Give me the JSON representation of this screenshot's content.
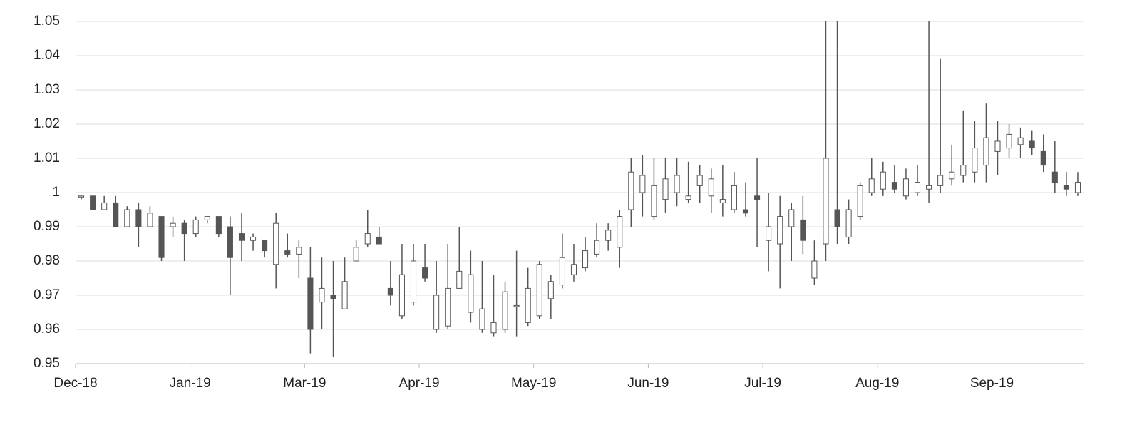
{
  "chart_data": {
    "type": "candlestick",
    "categories": [
      "Dec-18",
      null,
      null,
      null,
      null,
      null,
      null,
      null,
      null,
      null,
      "Jan-19",
      null,
      null,
      null,
      null,
      null,
      null,
      null,
      null,
      null,
      "Mar-19",
      null,
      null,
      null,
      null,
      null,
      null,
      null,
      null,
      null,
      "Apr-19",
      null,
      null,
      null,
      null,
      null,
      null,
      null,
      null,
      null,
      "May-19",
      null,
      null,
      null,
      null,
      null,
      null,
      null,
      null,
      null,
      "Jun-19",
      null,
      null,
      null,
      null,
      null,
      null,
      null,
      null,
      null,
      "Jul-19",
      null,
      null,
      null,
      null,
      null,
      null,
      null,
      null,
      null,
      "Aug-19",
      null,
      null,
      null,
      null,
      null,
      null,
      null,
      null,
      null,
      "Sep-19",
      null,
      null,
      null,
      null,
      null,
      null,
      null
    ],
    "open": [
      0.999,
      0.999,
      0.995,
      0.997,
      0.99,
      0.995,
      0.99,
      0.993,
      0.99,
      0.991,
      0.988,
      0.992,
      0.993,
      0.99,
      0.988,
      0.986,
      0.986,
      0.979,
      0.983,
      0.982,
      0.975,
      0.968,
      0.97,
      0.966,
      0.98,
      0.985,
      0.987,
      0.972,
      0.964,
      0.968,
      0.978,
      0.96,
      0.961,
      0.972,
      0.965,
      0.96,
      0.959,
      0.96,
      0.967,
      0.962,
      0.964,
      0.969,
      0.973,
      0.976,
      0.978,
      0.982,
      0.986,
      0.984,
      0.995,
      1.0,
      0.993,
      0.998,
      1.0,
      0.998,
      1.002,
      0.999,
      0.997,
      0.995,
      0.995,
      0.999,
      0.986,
      0.985,
      0.99,
      0.992,
      0.975,
      0.985,
      0.995,
      0.987,
      0.993,
      1.0,
      1.001,
      1.003,
      0.999,
      1.0,
      1.001,
      1.002,
      1.004,
      1.005,
      1.006,
      1.008,
      1.012,
      1.013,
      1.014,
      1.015,
      1.012,
      1.006,
      1.002,
      1.0
    ],
    "high": [
      0.999,
      0.999,
      0.999,
      0.999,
      0.996,
      0.997,
      0.996,
      0.993,
      0.993,
      0.992,
      0.993,
      0.993,
      0.993,
      0.993,
      0.994,
      0.988,
      0.986,
      0.994,
      0.988,
      0.986,
      0.984,
      0.981,
      0.98,
      0.981,
      0.986,
      0.995,
      0.99,
      0.98,
      0.985,
      0.985,
      0.985,
      0.98,
      0.985,
      0.99,
      0.983,
      0.98,
      0.976,
      0.974,
      0.983,
      0.978,
      0.98,
      0.976,
      0.988,
      0.985,
      0.987,
      0.991,
      0.991,
      0.995,
      1.01,
      1.011,
      1.01,
      1.01,
      1.01,
      1.009,
      1.008,
      1.007,
      1.008,
      1.006,
      1.003,
      1.01,
      1.0,
      0.999,
      0.997,
      0.999,
      0.986,
      1.05,
      1.05,
      0.998,
      1.003,
      1.01,
      1.009,
      1.008,
      1.007,
      1.008,
      1.05,
      1.039,
      1.014,
      1.024,
      1.021,
      1.026,
      1.021,
      1.02,
      1.019,
      1.018,
      1.017,
      1.015,
      1.006,
      1.006
    ],
    "low": [
      0.998,
      0.995,
      0.995,
      0.99,
      0.99,
      0.984,
      0.99,
      0.98,
      0.987,
      0.98,
      0.987,
      0.991,
      0.987,
      0.97,
      0.98,
      0.983,
      0.981,
      0.972,
      0.981,
      0.975,
      0.953,
      0.96,
      0.952,
      0.966,
      0.98,
      0.984,
      0.985,
      0.967,
      0.963,
      0.967,
      0.974,
      0.959,
      0.96,
      0.972,
      0.962,
      0.959,
      0.958,
      0.959,
      0.958,
      0.961,
      0.963,
      0.963,
      0.972,
      0.974,
      0.977,
      0.981,
      0.983,
      0.978,
      0.99,
      0.993,
      0.992,
      0.994,
      0.996,
      0.997,
      0.997,
      0.994,
      0.993,
      0.994,
      0.993,
      0.984,
      0.977,
      0.972,
      0.98,
      0.982,
      0.973,
      0.98,
      0.985,
      0.985,
      0.992,
      0.999,
      0.999,
      1.0,
      0.998,
      0.999,
      0.997,
      1.0,
      1.002,
      1.003,
      1.003,
      1.003,
      1.005,
      1.01,
      1.01,
      1.011,
      1.006,
      1.0,
      0.999,
      0.999
    ],
    "close": [
      0.999,
      0.995,
      0.997,
      0.99,
      0.995,
      0.99,
      0.994,
      0.981,
      0.991,
      0.988,
      0.992,
      0.993,
      0.988,
      0.981,
      0.986,
      0.987,
      0.983,
      0.991,
      0.982,
      0.984,
      0.96,
      0.972,
      0.969,
      0.974,
      0.984,
      0.988,
      0.985,
      0.97,
      0.976,
      0.98,
      0.975,
      0.97,
      0.972,
      0.977,
      0.976,
      0.966,
      0.962,
      0.971,
      0.967,
      0.972,
      0.979,
      0.974,
      0.981,
      0.979,
      0.983,
      0.986,
      0.989,
      0.993,
      1.006,
      1.005,
      1.002,
      1.004,
      1.005,
      0.999,
      1.005,
      1.004,
      0.998,
      1.002,
      0.994,
      0.998,
      0.99,
      0.993,
      0.995,
      0.986,
      0.98,
      1.01,
      0.99,
      0.995,
      1.002,
      1.004,
      1.006,
      1.001,
      1.004,
      1.003,
      1.002,
      1.005,
      1.006,
      1.008,
      1.013,
      1.016,
      1.015,
      1.017,
      1.016,
      1.013,
      1.008,
      1.003,
      1.001,
      1.003
    ],
    "ylim": [
      0.95,
      1.05
    ],
    "yticks": [
      0.95,
      0.96,
      0.97,
      0.98,
      0.99,
      1,
      1.01,
      1.02,
      1.03,
      1.04,
      1.05
    ],
    "grid": true,
    "up_color": "#ffffff",
    "down_color": "#555555",
    "line_color": "#555555"
  }
}
